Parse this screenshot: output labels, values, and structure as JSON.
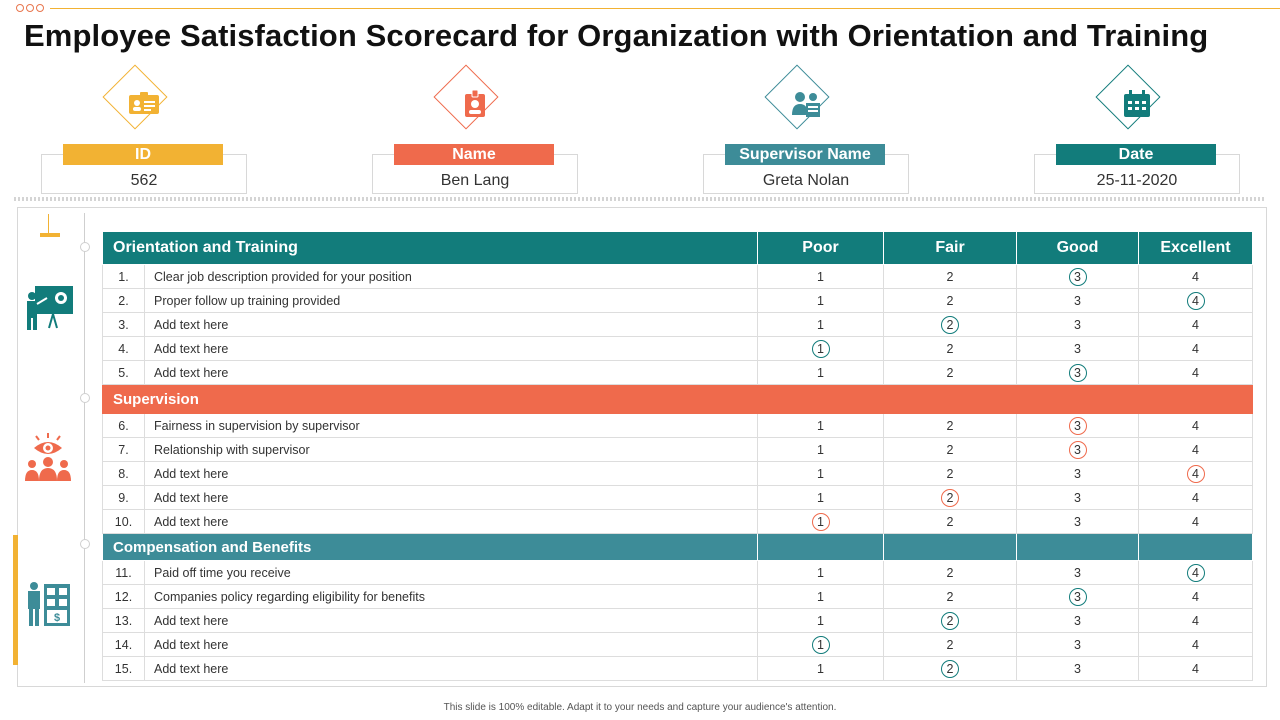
{
  "title": "Employee Satisfaction Scorecard for Organization with Orientation and Training",
  "colors": {
    "yellow": "#f2b233",
    "orange": "#ef6a4c",
    "teal_blue": "#3d8c98",
    "dark_teal": "#127c7b"
  },
  "cards": [
    {
      "label": "ID",
      "value": "562",
      "icon": "id-card-icon"
    },
    {
      "label": "Name",
      "value": "Ben Lang",
      "icon": "id-badge-icon"
    },
    {
      "label": "Supervisor Name",
      "value": "Greta Nolan",
      "icon": "supervisor-icon"
    },
    {
      "label": "Date",
      "value": "25-11-2020",
      "icon": "calendar-icon"
    }
  ],
  "table": {
    "columns": [
      "Orientation and Training",
      "Poor",
      "Fair",
      "Good",
      "Excellent"
    ],
    "scale": [
      "1",
      "2",
      "3",
      "4"
    ],
    "sections": [
      {
        "name": "Orientation and Training",
        "icon": "presentation-icon",
        "rows": [
          {
            "num": "1.",
            "text": "Clear job description provided for your position",
            "selected": 3
          },
          {
            "num": "2.",
            "text": "Proper follow up training provided",
            "selected": 4
          },
          {
            "num": "3.",
            "text": "Add text here",
            "selected": 2
          },
          {
            "num": "4.",
            "text": "Add text here",
            "selected": 1
          },
          {
            "num": "5.",
            "text": "Add text here",
            "selected": 3
          }
        ]
      },
      {
        "name": "Supervision",
        "icon": "team-eye-icon",
        "rows": [
          {
            "num": "6.",
            "text": "Fairness in supervision by supervisor",
            "selected": 3
          },
          {
            "num": "7.",
            "text": "Relationship with supervisor",
            "selected": 3
          },
          {
            "num": "8.",
            "text": "Add text here",
            "selected": 4
          },
          {
            "num": "9.",
            "text": "Add text here",
            "selected": 2
          },
          {
            "num": "10.",
            "text": "Add text here",
            "selected": 1
          }
        ]
      },
      {
        "name": "Compensation and Benefits",
        "icon": "person-calculator-icon",
        "rows": [
          {
            "num": "11.",
            "text": "Paid off time you receive",
            "selected": 4
          },
          {
            "num": "12.",
            "text": "Companies policy regarding eligibility for benefits",
            "selected": 3
          },
          {
            "num": "13.",
            "text": "Add text here",
            "selected": 2
          },
          {
            "num": "14.",
            "text": "Add text here",
            "selected": 1
          },
          {
            "num": "15.",
            "text": "Add text here",
            "selected": 2
          }
        ]
      }
    ]
  },
  "footer": "This slide is 100% editable. Adapt it to your needs and capture your audience's attention."
}
